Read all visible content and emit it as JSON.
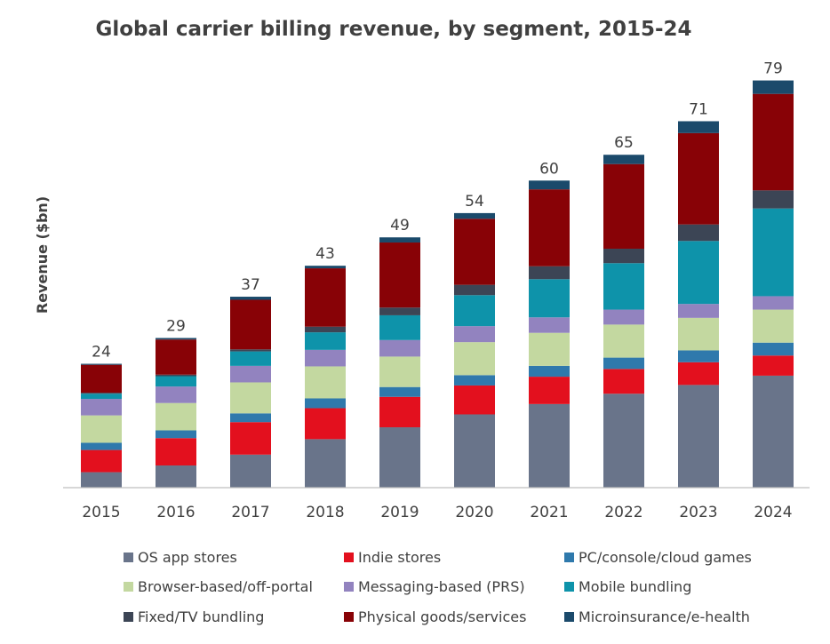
{
  "chart_data": {
    "type": "bar",
    "stacked": true,
    "title": "Global carrier billing revenue, by segment, 2015-24",
    "ylabel": "Revenue ($bn)",
    "xlabel": "",
    "categories": [
      "2015",
      "2016",
      "2017",
      "2018",
      "2019",
      "2020",
      "2021",
      "2022",
      "2023",
      "2024"
    ],
    "totals": [
      "24",
      "29",
      "37",
      "43",
      "49",
      "54",
      "60",
      "65",
      "71",
      "79"
    ],
    "ylim": [
      0,
      79
    ],
    "grid": false,
    "legend_position": "bottom",
    "series": [
      {
        "name": "OS app stores",
        "color": "#69748a",
        "values": [
          3.0,
          4.3,
          6.4,
          9.4,
          11.7,
          14.2,
          16.2,
          18.2,
          19.9,
          21.7
        ]
      },
      {
        "name": "Indie stores",
        "color": "#e3101e",
        "values": [
          4.3,
          5.3,
          6.3,
          6.0,
          5.9,
          5.6,
          5.3,
          4.8,
          4.4,
          3.9
        ]
      },
      {
        "name": "PC/console/cloud games",
        "color": "#2f79ac",
        "values": [
          1.4,
          1.5,
          1.7,
          1.9,
          1.9,
          2.0,
          2.1,
          2.2,
          2.3,
          2.5
        ]
      },
      {
        "name": "Browser-based/off-portal",
        "color": "#c3d8a0",
        "values": [
          5.3,
          5.3,
          6.0,
          6.2,
          5.9,
          6.4,
          6.4,
          6.4,
          6.3,
          6.4
        ]
      },
      {
        "name": "Messaging-based (PRS)",
        "color": "#9283bf",
        "values": [
          3.2,
          3.2,
          3.2,
          3.2,
          3.2,
          3.1,
          3.0,
          2.9,
          2.7,
          2.6
        ]
      },
      {
        "name": "Mobile bundling",
        "color": "#0e93aa",
        "values": [
          1.0,
          2.0,
          2.8,
          3.4,
          4.8,
          6.0,
          7.4,
          9.0,
          12.2,
          17.0
        ]
      },
      {
        "name": "Fixed/TV bundling",
        "color": "#3c4555",
        "values": [
          0.2,
          0.3,
          0.4,
          1.1,
          1.5,
          2.0,
          2.5,
          2.8,
          3.2,
          3.5
        ]
      },
      {
        "name": "Physical goods/services",
        "color": "#880206",
        "values": [
          5.4,
          6.8,
          9.6,
          11.3,
          12.6,
          12.8,
          14.9,
          16.4,
          17.7,
          18.7
        ]
      },
      {
        "name": "Microinsurance/e-health",
        "color": "#1b4a6b",
        "values": [
          0.2,
          0.3,
          0.6,
          0.5,
          1.0,
          1.1,
          1.7,
          1.8,
          2.3,
          2.6
        ]
      }
    ]
  }
}
